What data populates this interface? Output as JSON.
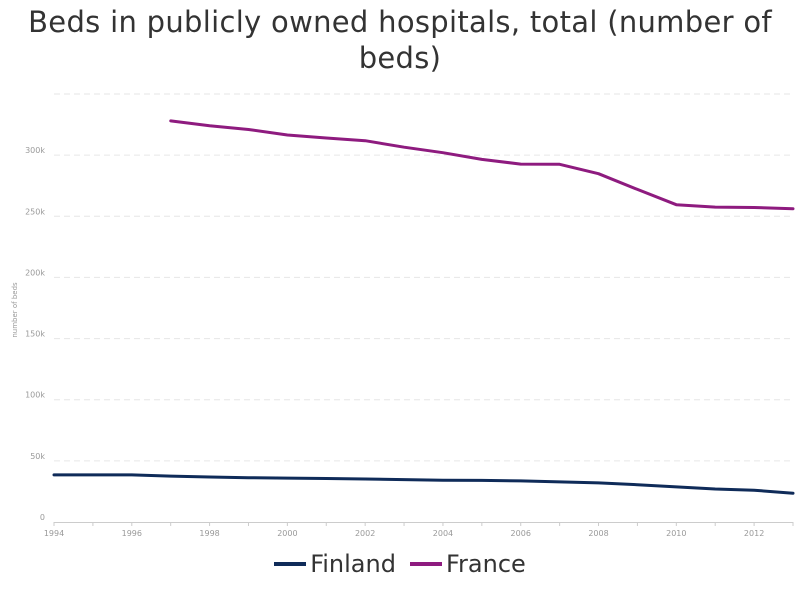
{
  "chart_data": {
    "type": "line",
    "title_line1": "Beds in publicly owned hospitals, total (number of",
    "title_line2": "beds)",
    "ylabel": "number of beds",
    "xlim": [
      1994,
      2013
    ],
    "ylim": [
      0,
      350000
    ],
    "x_ticks": [
      1994,
      1996,
      1998,
      2000,
      2002,
      2004,
      2006,
      2008,
      2010,
      2012
    ],
    "y_ticks": [
      {
        "value": 0,
        "label": "0"
      },
      {
        "value": 50000,
        "label": "50k"
      },
      {
        "value": 100000,
        "label": "100k"
      },
      {
        "value": 150000,
        "label": "150k"
      },
      {
        "value": 200000,
        "label": "200k"
      },
      {
        "value": 250000,
        "label": "250k"
      },
      {
        "value": 300000,
        "label": "300k"
      }
    ],
    "grid": true,
    "legend_position": "bottom",
    "series": [
      {
        "name": "Finland",
        "color": "#0f2b59",
        "x": [
          1994,
          1995,
          1996,
          1997,
          1998,
          1999,
          2000,
          2001,
          2002,
          2003,
          2004,
          2005,
          2006,
          2007,
          2008,
          2009,
          2010,
          2011,
          2012,
          2013
        ],
        "y": [
          38500,
          38500,
          38500,
          37500,
          36800,
          36200,
          35900,
          35600,
          35200,
          34700,
          34100,
          34000,
          33600,
          32800,
          32000,
          30500,
          28700,
          27000,
          26000,
          23500
        ]
      },
      {
        "name": "France",
        "color": "#8e1b7f",
        "x": [
          1997,
          1998,
          1999,
          2000,
          2001,
          2002,
          2003,
          2004,
          2005,
          2006,
          2007,
          2008,
          2009,
          2010,
          2011,
          2012,
          2013
        ],
        "y": [
          328000,
          324000,
          321000,
          316500,
          314000,
          311800,
          306500,
          302000,
          296500,
          292700,
          292500,
          284800,
          272000,
          259500,
          257500,
          257200,
          256200
        ]
      }
    ]
  }
}
